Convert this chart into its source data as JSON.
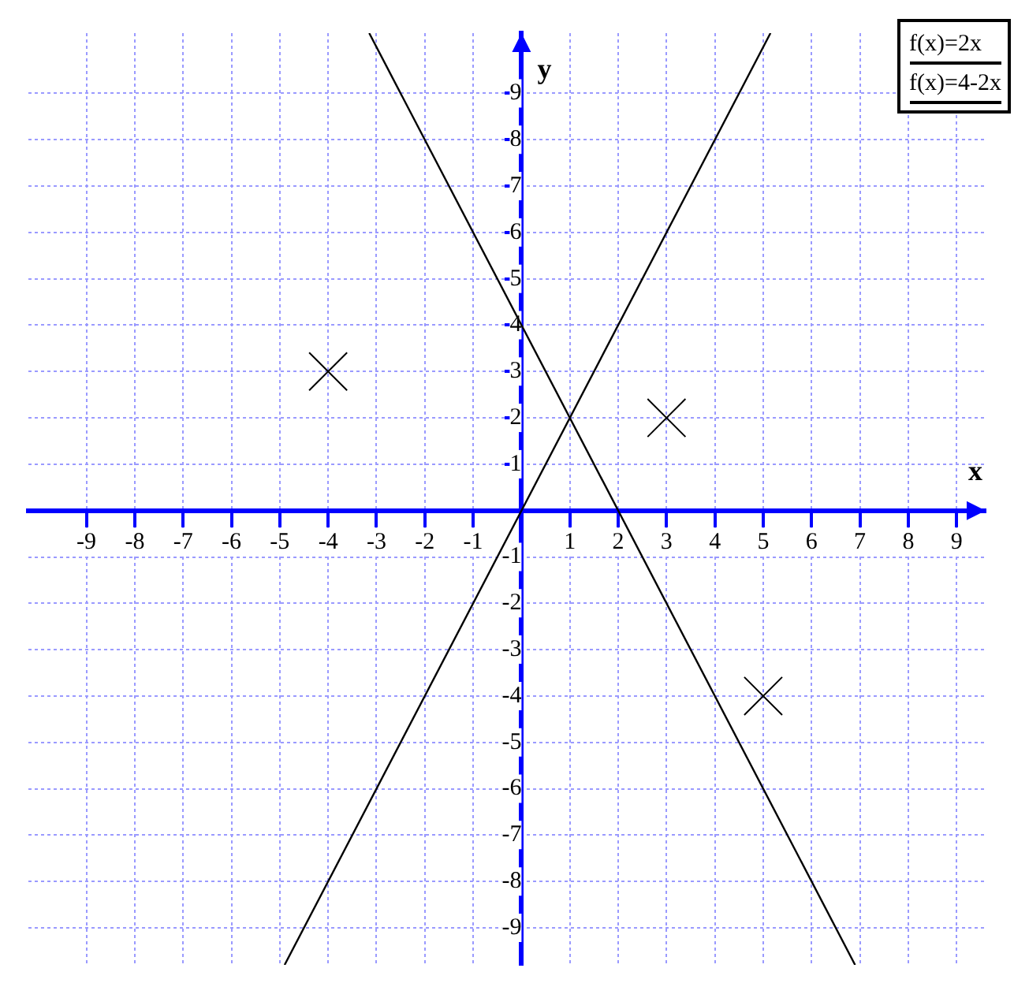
{
  "chart_data": {
    "type": "line",
    "xlabel": "x",
    "ylabel": "y",
    "xlim": [
      -10.2,
      9.6
    ],
    "ylim": [
      -9.8,
      10.3
    ],
    "xticks": [
      -9,
      -8,
      -7,
      -6,
      -5,
      -4,
      -3,
      -2,
      -1,
      1,
      2,
      3,
      4,
      5,
      6,
      7,
      8,
      9
    ],
    "yticks": [
      -9,
      -8,
      -7,
      -6,
      -5,
      -4,
      -3,
      -2,
      -1,
      1,
      2,
      3,
      4,
      5,
      6,
      7,
      8,
      9
    ],
    "grid": true,
    "legend": "top right",
    "series": [
      {
        "name": "f(x)=2x",
        "color": "#000000",
        "x": [
          -4.9,
          5.15
        ],
        "values": [
          -9.8,
          10.3
        ],
        "marker": "none",
        "line_style": "solid"
      },
      {
        "name": "f(x)=4-2x",
        "color": "#000000",
        "x": [
          -3.15,
          6.9
        ],
        "values": [
          10.3,
          -9.8
        ],
        "marker": "none",
        "line_style": "solid"
      },
      {
        "type": "scatter",
        "color": "#000000",
        "x": [
          -4,
          3,
          5
        ],
        "values": [
          3,
          2,
          -4
        ],
        "marker": "cross"
      }
    ]
  }
}
